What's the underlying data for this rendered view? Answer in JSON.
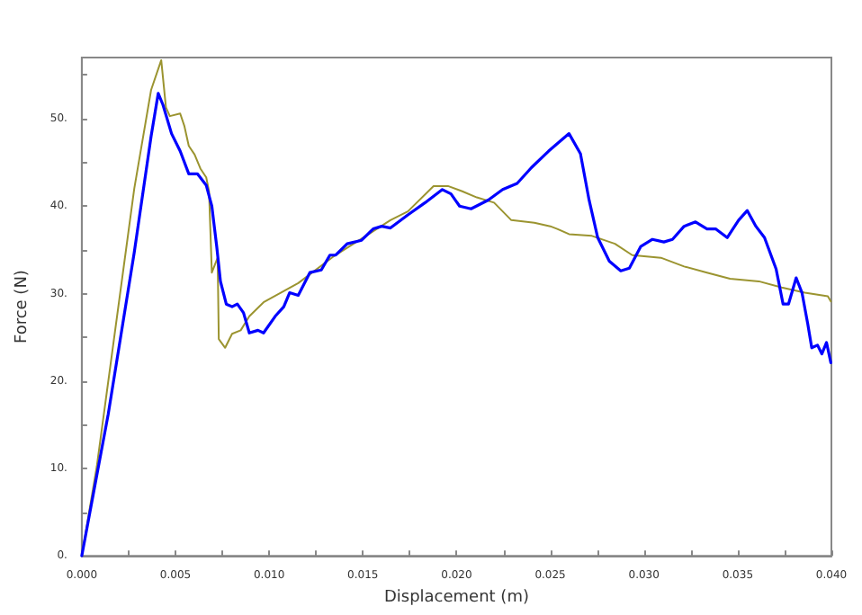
{
  "chart_data": {
    "type": "line",
    "xlabel": "Displacement (m)",
    "ylabel": "Force (N)",
    "xlim": [
      0,
      0.04
    ],
    "ylim": [
      0,
      57
    ],
    "xticks": [
      {
        "value": 0,
        "label": "0.000"
      },
      {
        "value": 0.0025,
        "label": null
      },
      {
        "value": 0.005,
        "label": "0.005"
      },
      {
        "value": 0.0075,
        "label": null
      },
      {
        "value": 0.01,
        "label": "0.010"
      },
      {
        "value": 0.0125,
        "label": null
      },
      {
        "value": 0.015,
        "label": "0.015"
      },
      {
        "value": 0.0175,
        "label": null
      },
      {
        "value": 0.02,
        "label": "0.020"
      },
      {
        "value": 0.0225,
        "label": null
      },
      {
        "value": 0.025,
        "label": "0.025"
      },
      {
        "value": 0.0275,
        "label": null
      },
      {
        "value": 0.03,
        "label": "0.030"
      },
      {
        "value": 0.0325,
        "label": null
      },
      {
        "value": 0.035,
        "label": "0.035"
      },
      {
        "value": 0.0375,
        "label": null
      },
      {
        "value": 0.04,
        "label": "0.040"
      }
    ],
    "yticks": [
      {
        "value": 0,
        "label": "0."
      },
      {
        "value": 5,
        "label": null
      },
      {
        "value": 10,
        "label": "10."
      },
      {
        "value": 15,
        "label": null
      },
      {
        "value": 20,
        "label": "20."
      },
      {
        "value": 25,
        "label": null
      },
      {
        "value": 30,
        "label": "30."
      },
      {
        "value": 35,
        "label": null
      },
      {
        "value": 40,
        "label": "40."
      },
      {
        "value": 45,
        "label": null
      },
      {
        "value": 50,
        "label": "50."
      },
      {
        "value": 55,
        "label": null
      }
    ],
    "grid": false,
    "marker": "none",
    "line_style": "solid",
    "series": [
      {
        "color": "#9b9430",
        "x": [
          0,
          0.0008,
          0.0028,
          0.0037,
          0.00424,
          0.00449,
          0.0047,
          0.00525,
          0.00547,
          0.00571,
          0.00602,
          0.00633,
          0.00664,
          0.00679,
          0.00694,
          0.00725,
          0.00731,
          0.00737,
          0.00765,
          0.00802,
          0.00848,
          0.00894,
          0.0097,
          0.01155,
          0.0134,
          0.01524,
          0.01647,
          0.0174,
          0.01877,
          0.01954,
          0.0203,
          0.02108,
          0.022,
          0.02292,
          0.02415,
          0.025,
          0.02537,
          0.026,
          0.02722,
          0.02845,
          0.02937,
          0.0309,
          0.03214,
          0.03336,
          0.03459,
          0.03613,
          0.03735,
          0.03858,
          0.03981,
          0.03997
        ],
        "values": [
          0,
          10.2,
          42.0,
          53.3,
          56.7,
          51.3,
          50.3,
          50.6,
          49.2,
          46.9,
          45.9,
          44.3,
          43.3,
          41.7,
          32.4,
          34.1,
          24.8,
          24.8,
          23.8,
          25.4,
          25.8,
          27.4,
          29.0,
          31.2,
          34.2,
          36.7,
          38.4,
          39.4,
          42.3,
          42.3,
          41.7,
          41.0,
          40.4,
          38.4,
          38.1,
          37.7,
          37.4,
          36.8,
          36.6,
          35.7,
          34.4,
          34.1,
          33.1,
          32.4,
          31.7,
          31.4,
          30.7,
          30.1,
          29.7,
          29.1
        ]
      },
      {
        "color": "#0000ff",
        "x": [
          0,
          0.00141,
          0.0028,
          0.0037,
          0.00408,
          0.00433,
          0.00479,
          0.00525,
          0.00571,
          0.00617,
          0.00664,
          0.00694,
          0.0072,
          0.0074,
          0.00771,
          0.00802,
          0.0083,
          0.00863,
          0.00894,
          0.0094,
          0.0097,
          0.01032,
          0.01078,
          0.01109,
          0.01155,
          0.01217,
          0.01278,
          0.01324,
          0.01355,
          0.01416,
          0.01493,
          0.01555,
          0.01601,
          0.01647,
          0.0174,
          0.01832,
          0.01924,
          0.0197,
          0.02016,
          0.02077,
          0.02169,
          0.02246,
          0.02323,
          0.02399,
          0.02491,
          0.026,
          0.02661,
          0.02707,
          0.02753,
          0.02815,
          0.02876,
          0.02922,
          0.02983,
          0.03045,
          0.03106,
          0.03152,
          0.03214,
          0.03275,
          0.03336,
          0.03382,
          0.03444,
          0.03505,
          0.03551,
          0.03597,
          0.03643,
          0.03705,
          0.03742,
          0.03771,
          0.03812,
          0.03843,
          0.03874,
          0.03895,
          0.03926,
          0.03949,
          0.03974,
          0.03997
        ],
        "values": [
          0,
          16.2,
          34.7,
          48.0,
          52.9,
          51.6,
          48.3,
          46.3,
          43.7,
          43.7,
          42.4,
          40.0,
          35.4,
          31.4,
          28.8,
          28.5,
          28.8,
          27.8,
          25.5,
          25.8,
          25.5,
          27.4,
          28.5,
          30.1,
          29.8,
          32.4,
          32.7,
          34.4,
          34.4,
          35.7,
          36.1,
          37.4,
          37.7,
          37.5,
          39.0,
          40.4,
          41.9,
          41.4,
          40.0,
          39.7,
          40.7,
          41.9,
          42.6,
          44.4,
          46.3,
          48.3,
          46.0,
          40.7,
          36.4,
          33.7,
          32.6,
          32.9,
          35.4,
          36.2,
          35.9,
          36.2,
          37.7,
          38.2,
          37.4,
          37.4,
          36.4,
          38.4,
          39.5,
          37.7,
          36.4,
          32.8,
          28.8,
          28.8,
          31.8,
          30.1,
          26.5,
          23.8,
          24.1,
          23.1,
          24.4,
          22.1
        ]
      }
    ]
  }
}
